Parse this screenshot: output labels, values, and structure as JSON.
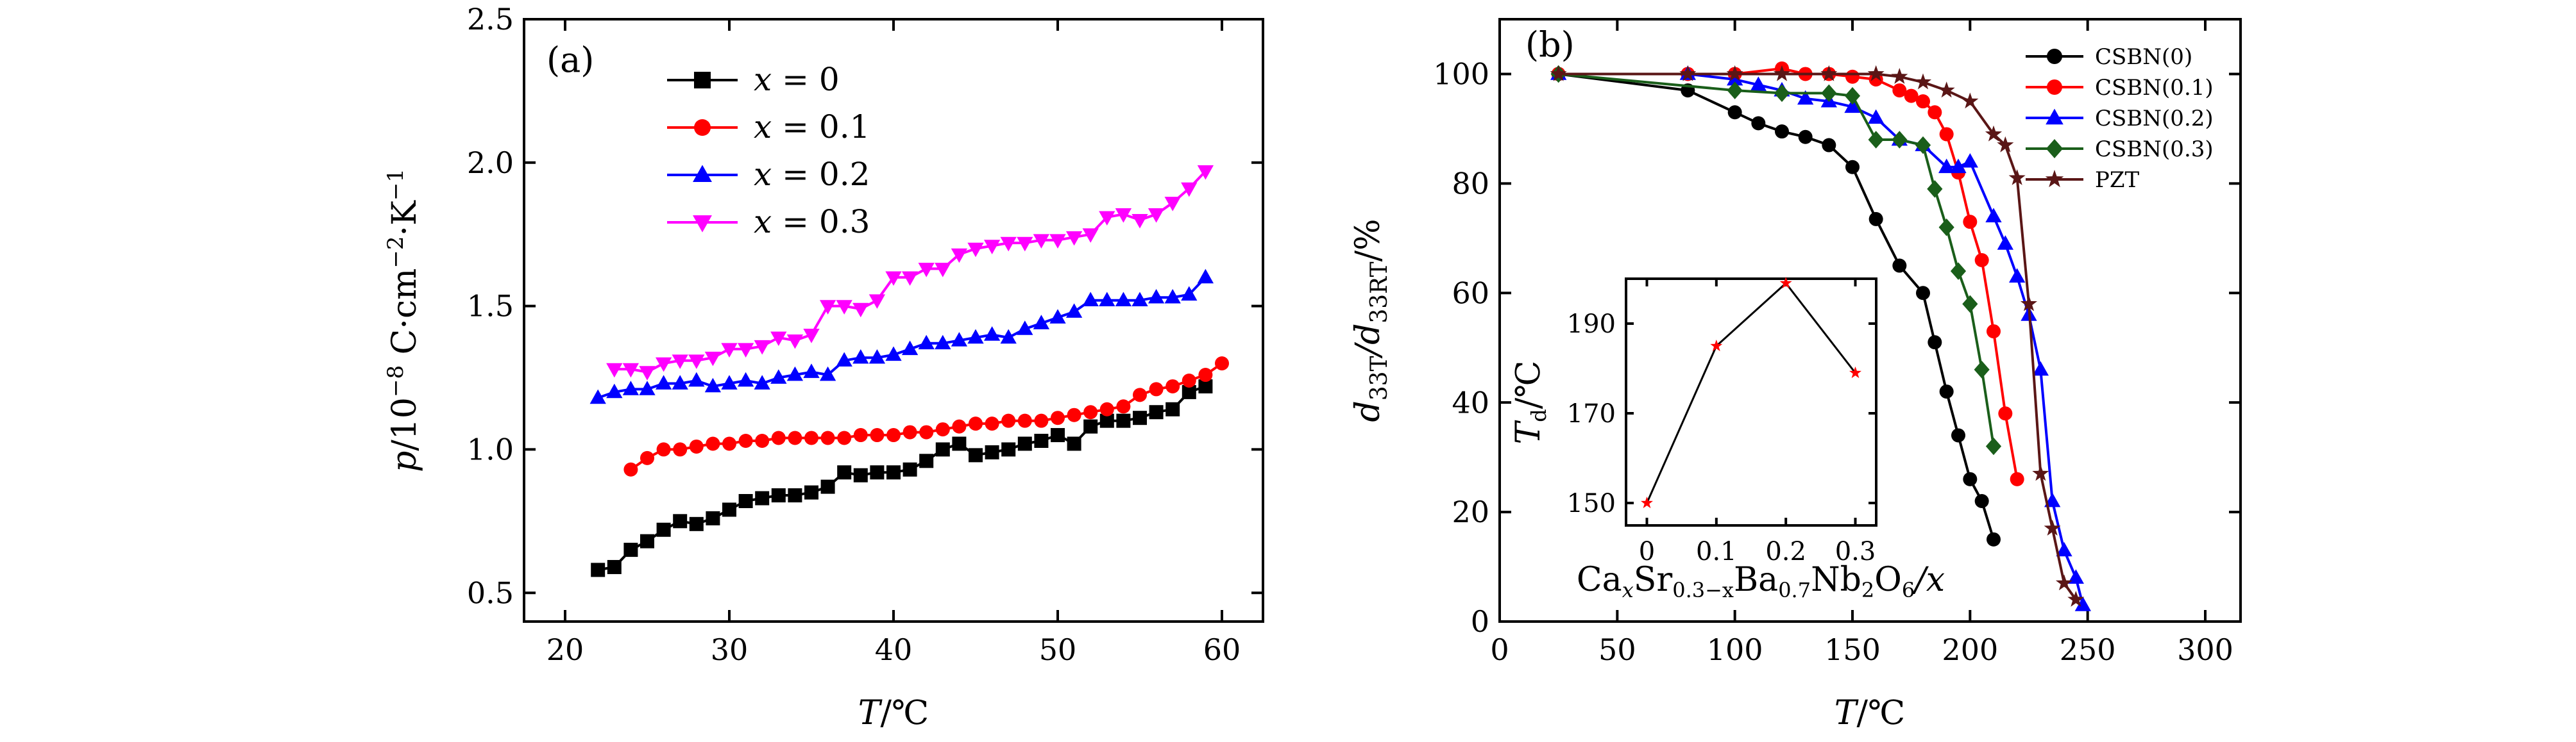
{
  "chart_data": [
    {
      "type": "line",
      "panel_label": "(a)",
      "xlabel_var": "T",
      "xlabel_unit": "/℃",
      "ylabel_var": "p",
      "ylabel_unit": "/10",
      "ylabel_exp": "−8",
      "ylabel_rest": " C·cm",
      "ylabel_exp2": "−2",
      "ylabel_rest2": "·K",
      "ylabel_exp3": "−1",
      "xlim": [
        17.5,
        62.5
      ],
      "ylim": [
        0.4,
        2.5
      ],
      "xticks": [
        "20",
        "30",
        "40",
        "50",
        "60"
      ],
      "yticks": [
        "0.5",
        "1.0",
        "1.5",
        "2.0",
        "2.5"
      ],
      "legend_position": "top-left",
      "series": [
        {
          "name": "x = 0",
          "legend_var": "x",
          "legend_eq": " = ",
          "legend_val": "0",
          "color": "#000000",
          "marker": "square",
          "x": [
            22,
            23,
            24,
            25,
            26,
            27,
            28,
            29,
            30,
            31,
            32,
            33,
            34,
            35,
            36,
            37,
            38,
            39,
            40,
            41,
            42,
            43,
            44,
            45,
            46,
            47,
            48,
            49,
            50,
            51,
            52,
            53,
            54,
            55,
            56,
            57,
            58,
            59
          ],
          "y": [
            0.58,
            0.59,
            0.65,
            0.68,
            0.72,
            0.75,
            0.74,
            0.76,
            0.79,
            0.82,
            0.83,
            0.84,
            0.84,
            0.85,
            0.87,
            0.92,
            0.91,
            0.92,
            0.92,
            0.93,
            0.96,
            1.0,
            1.02,
            0.98,
            0.99,
            1.0,
            1.02,
            1.03,
            1.05,
            1.02,
            1.08,
            1.1,
            1.1,
            1.11,
            1.13,
            1.14,
            1.2,
            1.22
          ]
        },
        {
          "name": "x = 0.1",
          "legend_var": "x",
          "legend_eq": " = ",
          "legend_val": "0.1",
          "color": "#ff0000",
          "marker": "circle",
          "x": [
            24,
            25,
            26,
            27,
            28,
            29,
            30,
            31,
            32,
            33,
            34,
            35,
            36,
            37,
            38,
            39,
            40,
            41,
            42,
            43,
            44,
            45,
            46,
            47,
            48,
            49,
            50,
            51,
            52,
            53,
            54,
            55,
            56,
            57,
            58,
            59,
            60
          ],
          "y": [
            0.93,
            0.97,
            1.0,
            1.0,
            1.01,
            1.02,
            1.02,
            1.03,
            1.03,
            1.04,
            1.04,
            1.04,
            1.04,
            1.04,
            1.05,
            1.05,
            1.05,
            1.06,
            1.06,
            1.07,
            1.08,
            1.09,
            1.09,
            1.1,
            1.1,
            1.1,
            1.11,
            1.12,
            1.13,
            1.14,
            1.15,
            1.19,
            1.21,
            1.22,
            1.24,
            1.26,
            1.3
          ]
        },
        {
          "name": "x = 0.2",
          "legend_var": "x",
          "legend_eq": " = ",
          "legend_val": "0.2",
          "color": "#0000ff",
          "marker": "triangle-up",
          "x": [
            22,
            23,
            24,
            25,
            26,
            27,
            28,
            29,
            30,
            31,
            32,
            33,
            34,
            35,
            36,
            37,
            38,
            39,
            40,
            41,
            42,
            43,
            44,
            45,
            46,
            47,
            48,
            49,
            50,
            51,
            52,
            53,
            54,
            55,
            56,
            57,
            58,
            59
          ],
          "y": [
            1.18,
            1.2,
            1.21,
            1.21,
            1.23,
            1.23,
            1.24,
            1.22,
            1.23,
            1.24,
            1.23,
            1.25,
            1.26,
            1.27,
            1.26,
            1.31,
            1.32,
            1.32,
            1.33,
            1.35,
            1.37,
            1.37,
            1.38,
            1.39,
            1.4,
            1.39,
            1.42,
            1.44,
            1.46,
            1.48,
            1.52,
            1.52,
            1.52,
            1.52,
            1.53,
            1.53,
            1.54,
            1.6
          ]
        },
        {
          "name": "x = 0.3",
          "legend_var": "x",
          "legend_eq": " = ",
          "legend_val": "0.3",
          "color": "#ff00ff",
          "marker": "triangle-down",
          "x": [
            23,
            24,
            25,
            26,
            27,
            28,
            29,
            30,
            31,
            32,
            33,
            34,
            35,
            36,
            37,
            38,
            39,
            40,
            41,
            42,
            43,
            44,
            45,
            46,
            47,
            48,
            49,
            50,
            51,
            52,
            53,
            54,
            55,
            56,
            57,
            58,
            59
          ],
          "y": [
            1.28,
            1.28,
            1.27,
            1.3,
            1.31,
            1.31,
            1.32,
            1.35,
            1.35,
            1.36,
            1.39,
            1.38,
            1.4,
            1.5,
            1.5,
            1.49,
            1.52,
            1.6,
            1.6,
            1.63,
            1.63,
            1.68,
            1.7,
            1.71,
            1.72,
            1.72,
            1.73,
            1.73,
            1.74,
            1.75,
            1.81,
            1.82,
            1.8,
            1.82,
            1.86,
            1.91,
            1.97
          ]
        }
      ]
    },
    {
      "type": "line",
      "panel_label": "(b)",
      "xlabel_var": "T",
      "xlabel_unit": "/℃",
      "ylabel_var": "d",
      "ylabel_sub1": "33T",
      "ylabel_sep": "/d",
      "ylabel_sub2": "33RT",
      "ylabel_unit": "/%",
      "xlim": [
        0,
        315
      ],
      "ylim": [
        0,
        110
      ],
      "xticks": [
        "0",
        "50",
        "100",
        "150",
        "200",
        "250",
        "300"
      ],
      "yticks": [
        "0",
        "20",
        "40",
        "60",
        "80",
        "100"
      ],
      "legend_position": "top-right",
      "series": [
        {
          "name": "CSBN(0)",
          "color": "#000000",
          "marker": "circle",
          "x": [
            25,
            80,
            100,
            110,
            120,
            130,
            140,
            150,
            160,
            170,
            180,
            185,
            190,
            195,
            200,
            205,
            210
          ],
          "y": [
            100,
            97,
            93,
            91,
            89.5,
            88.5,
            87,
            83,
            73.5,
            65,
            60,
            51,
            42,
            34,
            26,
            22,
            15
          ]
        },
        {
          "name": "CSBN(0.1)",
          "color": "#ff0000",
          "marker": "circle",
          "x": [
            25,
            80,
            100,
            120,
            130,
            140,
            150,
            160,
            170,
            175,
            180,
            185,
            190,
            195,
            200,
            205,
            210,
            215,
            220
          ],
          "y": [
            100,
            100,
            100,
            101,
            100,
            100,
            99.5,
            99,
            97,
            96,
            95,
            93,
            89,
            82,
            73,
            66,
            53,
            38,
            26
          ]
        },
        {
          "name": "CSBN(0.2)",
          "color": "#0000ff",
          "marker": "triangle-up",
          "x": [
            25,
            80,
            100,
            110,
            120,
            130,
            140,
            150,
            160,
            170,
            180,
            190,
            195,
            200,
            210,
            215,
            220,
            225,
            230,
            235,
            240,
            245,
            248
          ],
          "y": [
            100,
            100,
            99,
            98,
            97,
            95.5,
            95,
            94,
            92,
            88,
            87,
            83,
            83,
            84,
            74,
            69,
            63,
            56,
            46,
            22,
            13,
            8,
            3
          ]
        },
        {
          "name": "CSBN(0.3)",
          "color": "#1a5e1a",
          "marker": "diamond",
          "x": [
            25,
            100,
            120,
            140,
            150,
            160,
            170,
            180,
            185,
            190,
            195,
            200,
            205,
            210
          ],
          "y": [
            100,
            97,
            96.5,
            96.5,
            96,
            88,
            88,
            87,
            79,
            72,
            64,
            58,
            46,
            32
          ]
        },
        {
          "name": "PZT",
          "color": "#5a1616",
          "marker": "star",
          "x": [
            25,
            80,
            100,
            120,
            140,
            160,
            170,
            180,
            190,
            200,
            210,
            215,
            220,
            225,
            230,
            235,
            240,
            245
          ],
          "y": [
            100,
            100,
            100,
            100,
            100,
            100,
            99.5,
            98.5,
            97,
            95,
            89,
            87,
            81,
            58,
            27,
            17,
            7,
            4
          ]
        }
      ],
      "inset": {
        "type": "line",
        "xlabel": "Ca",
        "xlabel_sub1": "x",
        "xlabel_mid1": "Sr",
        "xlabel_sub2": "0.3−x",
        "xlabel_mid2": "Ba",
        "xlabel_sub3": "0.7",
        "xlabel_mid3": "Nb",
        "xlabel_sub4": "2",
        "xlabel_mid4": "O",
        "xlabel_sub5": "6",
        "xlabel_tail": "/x",
        "ylabel_var": "T",
        "ylabel_sub": "d",
        "ylabel_unit": "/℃",
        "xlim": [
          -0.03,
          0.33
        ],
        "ylim": [
          145,
          200
        ],
        "xticks": [
          "0",
          "0.1",
          "0.2",
          "0.3"
        ],
        "yticks": [
          "150",
          "170",
          "190"
        ],
        "color": "#000000",
        "marker_color": "#ff0000",
        "marker": "star",
        "x": [
          0,
          0.1,
          0.2,
          0.3
        ],
        "y": [
          150,
          185,
          199,
          179
        ]
      }
    }
  ]
}
